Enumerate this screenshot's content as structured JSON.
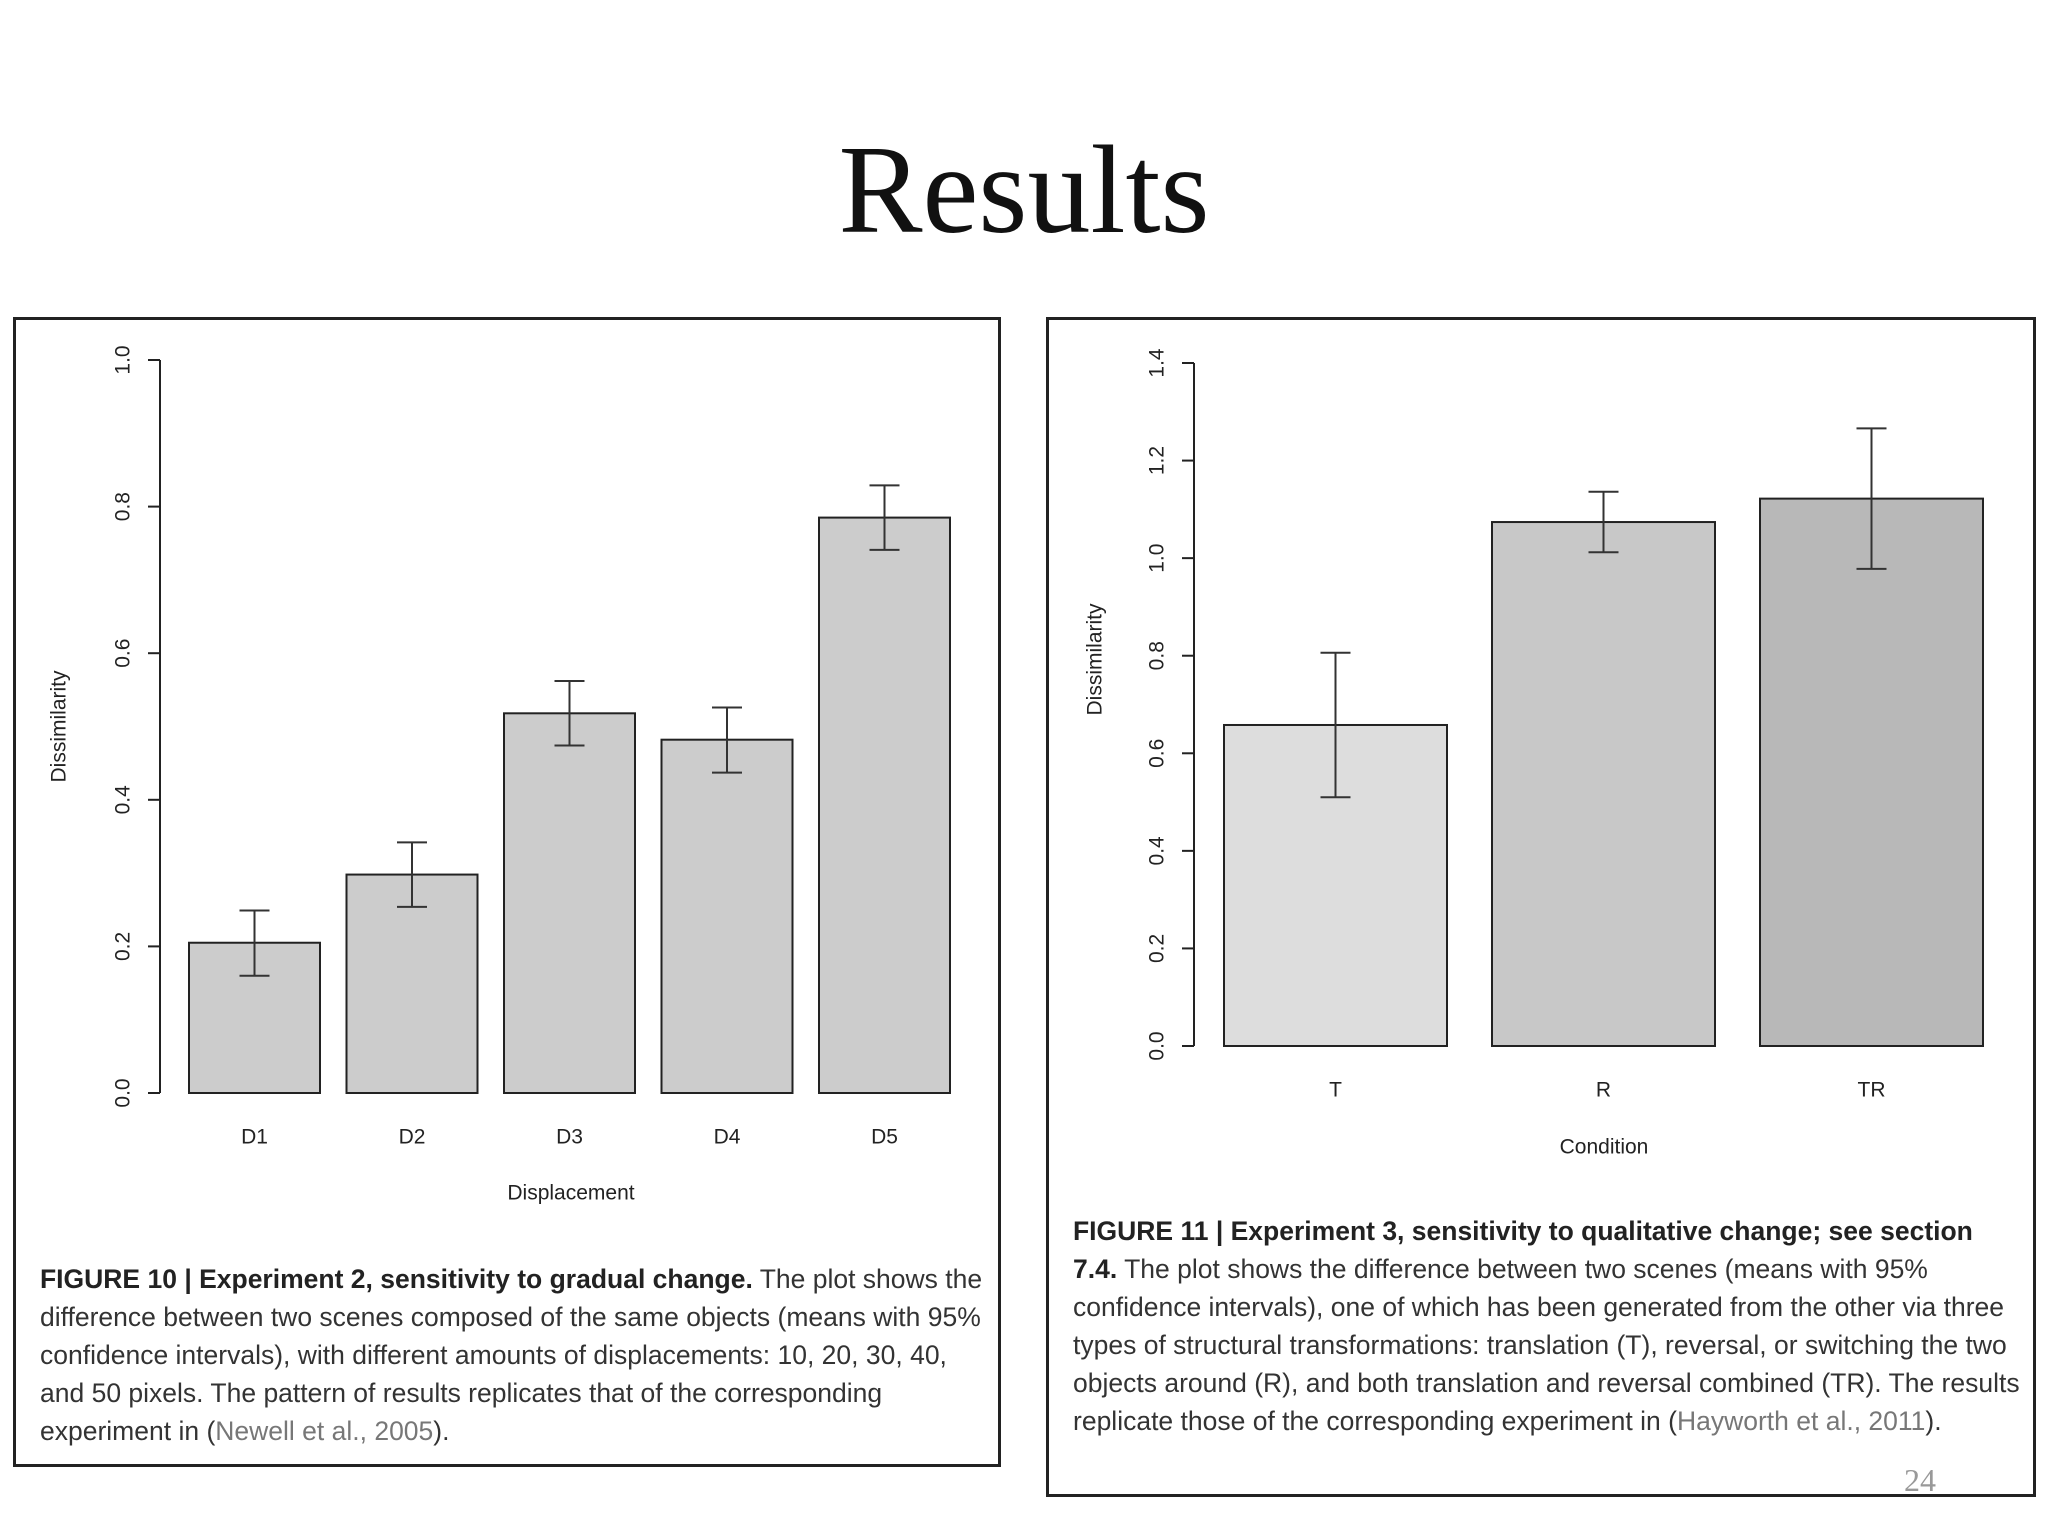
{
  "slide": {
    "title": "Results",
    "page_number": "24"
  },
  "chart_data": [
    {
      "type": "bar",
      "title": "",
      "xlabel": "Displacement",
      "ylabel": "Dissimilarity",
      "ylim": [
        0,
        1.0
      ],
      "yticks": [
        "0.0",
        "0.2",
        "0.4",
        "0.6",
        "0.8",
        "1.0"
      ],
      "categories": [
        "D1",
        "D2",
        "D3",
        "D4",
        "D5"
      ],
      "values": [
        0.205,
        0.298,
        0.518,
        0.482,
        0.785
      ],
      "error_low": [
        0.16,
        0.254,
        0.474,
        0.437,
        0.741
      ],
      "error_high": [
        0.249,
        0.342,
        0.562,
        0.526,
        0.829
      ],
      "bar_color": "#cccccc",
      "grid": false
    },
    {
      "type": "bar",
      "title": "",
      "xlabel": "Condition",
      "ylabel": "Dissimilarity",
      "ylim": [
        0,
        1.4
      ],
      "yticks": [
        "0.0",
        "0.2",
        "0.4",
        "0.6",
        "0.8",
        "1.0",
        "1.2",
        "1.4"
      ],
      "categories": [
        "T",
        "R",
        "TR"
      ],
      "values": [
        0.658,
        1.074,
        1.122
      ],
      "error_low": [
        0.51,
        1.012,
        0.978
      ],
      "error_high": [
        0.806,
        1.136,
        1.266
      ],
      "bar_colors": [
        "#dddddd",
        "#c8c8c8",
        "#b8b8b8"
      ],
      "grid": false
    }
  ],
  "captions": {
    "left": {
      "label": "FIGURE 10 | Experiment 2, sensitivity to gradual change.",
      "text": " The plot shows the difference between two scenes composed of the same objects (means with 95% confidence intervals), with different amounts of displacements: 10, 20, 30, 40, and 50 pixels. The pattern of results replicates that of the corresponding experiment in (",
      "citation": "Newell et al., 2005",
      "end": ")."
    },
    "right": {
      "label": "FIGURE 11 | Experiment 3, sensitivity to qualitative change; see section 7.4.",
      "text": " The plot shows the difference between two scenes (means with 95% confidence intervals), one of which has been generated from the other via three types of structural transformations: translation (T), reversal, or switching the two objects around (R), and both translation and reversal combined (TR). The results replicate those of the corresponding experiment in (",
      "citation": "Hayworth et al., 2011",
      "end": ")."
    }
  }
}
